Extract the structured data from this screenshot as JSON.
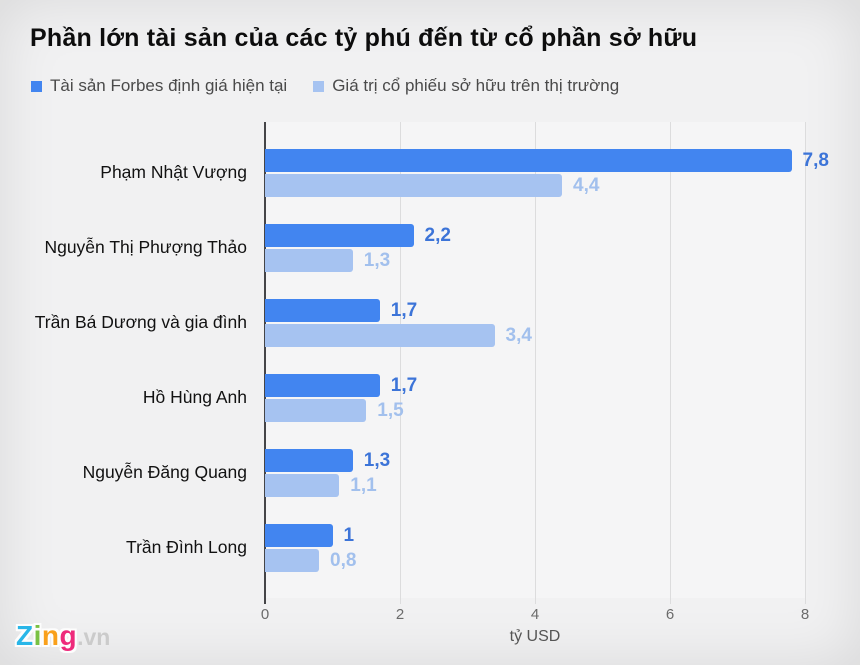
{
  "title": "Phần lớn tài sản của các tỷ phú đến từ cổ phần sở hữu",
  "legend": {
    "items": [
      {
        "label": "Tài sản Forbes định giá hiện tại",
        "color": "#4285f0"
      },
      {
        "label": "Giá trị cổ phiếu sở hữu trên thị trường",
        "color": "#a6c3f1"
      }
    ]
  },
  "chart_data": {
    "type": "bar",
    "orientation": "horizontal",
    "categories": [
      "Phạm Nhật Vượng",
      "Nguyễn Thị Phượng Thảo",
      "Trần Bá Dương và gia đình",
      "Hồ Hùng Anh",
      "Nguyễn Đăng Quang",
      "Trần Đình Long"
    ],
    "series": [
      {
        "key": "forbes",
        "name": "Tài sản Forbes định giá hiện tại",
        "color": "#4285f0",
        "label_color": "#3c74d8",
        "values": [
          7.8,
          2.2,
          1.7,
          1.7,
          1.3,
          1.0
        ],
        "labels": [
          "7,8",
          "2,2",
          "1,7",
          "1,7",
          "1,3",
          "1"
        ]
      },
      {
        "key": "market",
        "name": "Giá trị cổ phiếu sở hữu trên thị trường",
        "color": "#a6c3f1",
        "label_color": "#a2c0ed",
        "values": [
          4.4,
          1.3,
          3.4,
          1.5,
          1.1,
          0.8
        ],
        "labels": [
          "4,4",
          "1,3",
          "3,4",
          "1,5",
          "1,1",
          "0,8"
        ]
      }
    ],
    "xlabel": "tỷ USD",
    "xlim": [
      0,
      8
    ],
    "xticks": [
      0,
      2,
      4,
      6,
      8
    ],
    "xtick_labels": [
      "0",
      "2",
      "4",
      "6",
      "8"
    ],
    "grid": "vertical",
    "legend_position": "top-left"
  },
  "footer": {
    "logo": {
      "letters": [
        {
          "char": "Z",
          "color": "#29b6e8"
        },
        {
          "char": "i",
          "color": "#79c143"
        },
        {
          "char": "n",
          "color": "#f9a01b"
        },
        {
          "char": "g",
          "color": "#ee2a7b"
        }
      ],
      "suffix": ".vn"
    }
  }
}
